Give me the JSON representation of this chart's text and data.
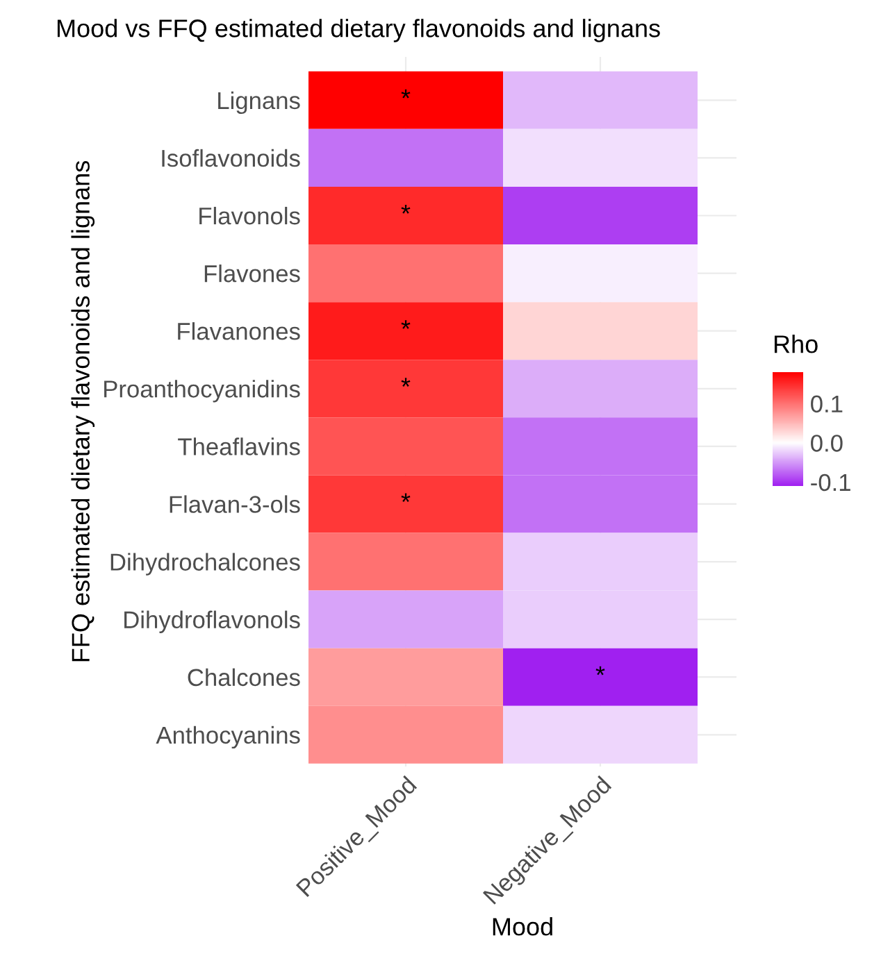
{
  "chart_data": {
    "type": "heatmap",
    "title": "Mood vs FFQ estimated dietary flavonoids and lignans",
    "xlabel": "Mood",
    "ylabel": "FFQ estimated dietary flavonoids and lignans",
    "clabel": "Rho",
    "categories": [
      "Positive_Mood",
      "Negative_Mood"
    ],
    "y_categories": [
      "Lignans",
      "Isoflavonoids",
      "Flavonols",
      "Flavones",
      "Flavanones",
      "Proanthocyanidins",
      "Theaflavins",
      "Flavan-3-ols",
      "Dihydrochalcones",
      "Dihydroflavonols",
      "Chalcones",
      "Anthocyanins"
    ],
    "cells": [
      [
        0.18,
        -0.035
      ],
      [
        -0.07,
        -0.015
      ],
      [
        0.15,
        -0.095
      ],
      [
        0.1,
        -0.008
      ],
      [
        0.16,
        0.03
      ],
      [
        0.14,
        -0.04
      ],
      [
        0.12,
        -0.07
      ],
      [
        0.14,
        -0.07
      ],
      [
        0.1,
        -0.025
      ],
      [
        -0.045,
        -0.025
      ],
      [
        0.07,
        -0.11
      ],
      [
        0.08,
        -0.02
      ]
    ],
    "cell_labels": [
      [
        "*",
        null
      ],
      [
        null,
        null
      ],
      [
        "*",
        null
      ],
      [
        null,
        null
      ],
      [
        "*",
        null
      ],
      [
        "*",
        null
      ],
      [
        null,
        null
      ],
      [
        "*",
        null
      ],
      [
        null,
        null
      ],
      [
        null,
        null
      ],
      [
        null,
        "*"
      ],
      [
        null,
        null
      ]
    ],
    "clim": [
      -0.11,
      0.18
    ],
    "cticks": [
      -0.1,
      {
        "value": 0,
        "label": "0.0"
      },
      0.1
    ],
    "colors": [
      "#a020f0",
      "#ffffff",
      "#ff0000"
    ],
    "grid": true
  }
}
